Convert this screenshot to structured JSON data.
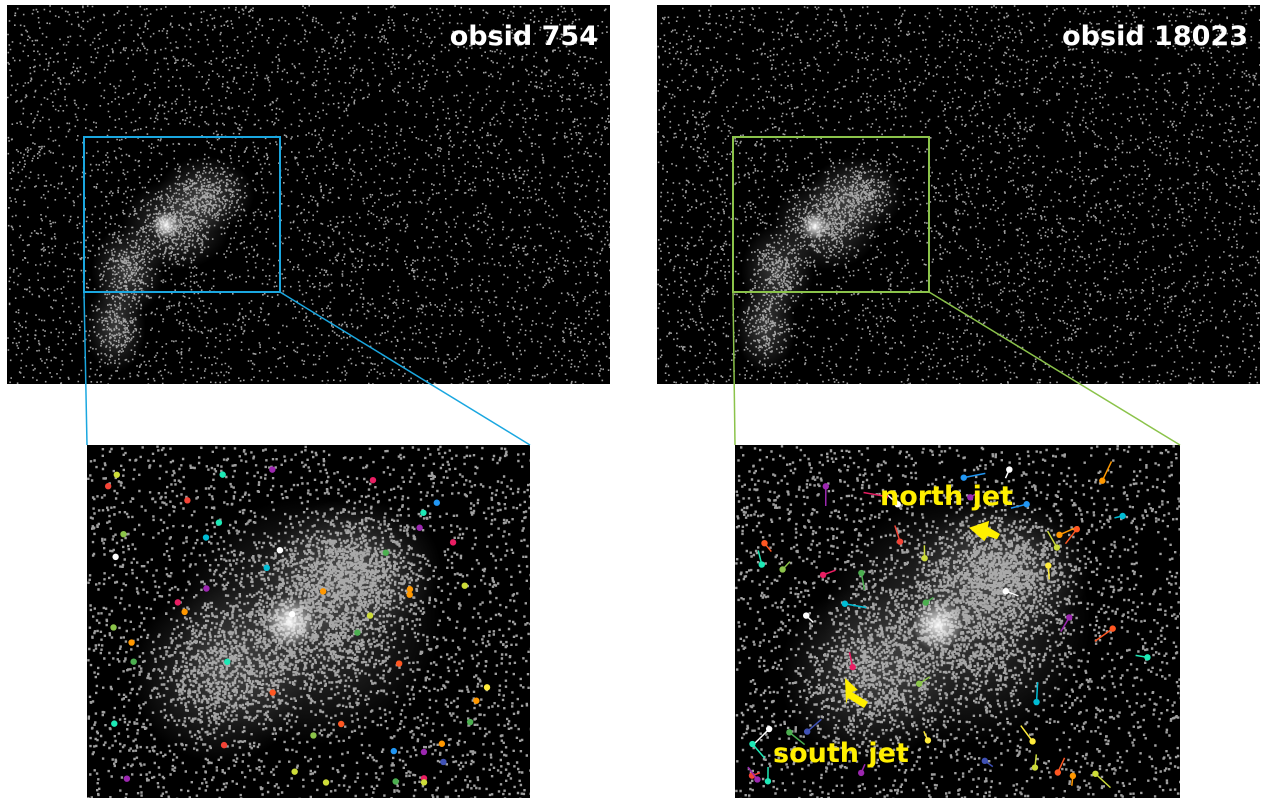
{
  "panels": {
    "left": {
      "label": "obsid 754"
    },
    "right": {
      "label": "obsid 18023"
    }
  },
  "annotations": {
    "north_jet": "north jet",
    "south_jet": "south jet"
  }
}
